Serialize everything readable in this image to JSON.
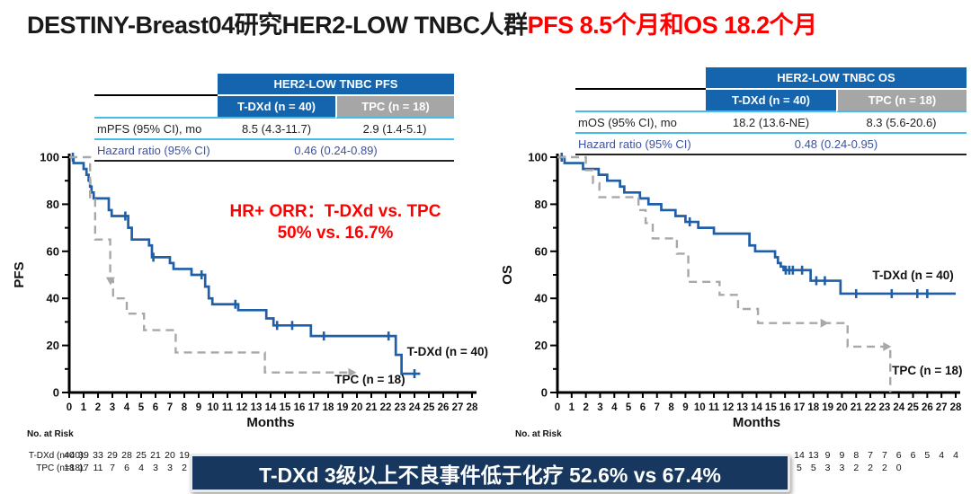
{
  "title": {
    "black": "DESTINY-Breast04研究HER2-LOW TNBC人群",
    "red": "PFS 8.5个月和OS 18.2个月"
  },
  "tables": {
    "pfs": {
      "group_header": "HER2-LOW TNBC PFS",
      "col_tdxd": "T-DXd (n = 40)",
      "col_tpc": "TPC (n = 18)",
      "median_label": "mPFS (95% CI), mo",
      "median_tdxd": "8.5 (4.3-11.7)",
      "median_tpc": "2.9 (1.4-5.1)",
      "hr_label": "Hazard ratio (95% CI)",
      "hr_value": "0.46 (0.24-0.89)"
    },
    "os": {
      "group_header": "HER2-LOW TNBC OS",
      "col_tdxd": "T-DXd (n = 40)",
      "col_tpc": "TPC (n = 18)",
      "median_label": "mOS (95% CI), mo",
      "median_tdxd": "18.2 (13.6-NE)",
      "median_tpc": "8.3 (5.6-20.6)",
      "hr_label": "Hazard ratio (95% CI)",
      "hr_value": "0.48 (0.24-0.95)"
    }
  },
  "annotation": {
    "line1": "HR+ ORR：T-DXd vs. TPC",
    "line2": "50% vs. 16.7%"
  },
  "banner": {
    "text": "T-DXd 3级以上不良事件低于化疗 52.6% vs 67.4%"
  },
  "colors": {
    "title_red": "#FF0000",
    "header_blue": "#1565AE",
    "header_gray": "#A6A6A6",
    "tdxd_blue": "#1F5FA8",
    "tpc_gray": "#A8A8A8",
    "cyan_rule": "#45BDEB",
    "hazard_blue": "#3D52A1",
    "banner_bg": "#17375E",
    "banner_text": "#FFFFFF"
  },
  "chart_data": [
    {
      "id": "pfs",
      "type": "line",
      "subtype": "kaplan-meier",
      "title": "HER2-LOW TNBC PFS",
      "xlabel": "Months",
      "ylabel": "PFS",
      "xlim": [
        0,
        28
      ],
      "ylim": [
        0,
        100
      ],
      "xtick_step": 1,
      "ytick_minor_step": 10,
      "ytick_label_step": 20,
      "grid": false,
      "risk_header": "No. at Risk",
      "risk_rows": [
        {
          "label": "T-DXd (n=40):",
          "start": 0,
          "values": [
            40,
            39,
            33,
            29,
            28,
            25,
            21,
            20,
            19
          ]
        },
        {
          "label": "TPC (n=18):",
          "start": 0,
          "values": [
            18,
            17,
            11,
            7,
            6,
            4,
            3,
            3,
            2
          ]
        }
      ],
      "series": [
        {
          "id": "tdxd",
          "name": "T-DXd (n = 40)",
          "color": "#1F5FA8",
          "dash": null,
          "width": 2.7,
          "points": [
            [
              0,
              100
            ],
            [
              0.3,
              97.5
            ],
            [
              1.0,
              95
            ],
            [
              1.2,
              92.5
            ],
            [
              1.35,
              90
            ],
            [
              1.45,
              87.5
            ],
            [
              1.55,
              85
            ],
            [
              1.7,
              82.5
            ],
            [
              2.75,
              77.5
            ],
            [
              2.95,
              75
            ],
            [
              4.1,
              70
            ],
            [
              4.35,
              65
            ],
            [
              5.55,
              62.5
            ],
            [
              5.75,
              57.5
            ],
            [
              7.0,
              55
            ],
            [
              7.25,
              52.5
            ],
            [
              8.5,
              50
            ],
            [
              9.45,
              45
            ],
            [
              9.7,
              40
            ],
            [
              9.95,
              37.5
            ],
            [
              11.75,
              35
            ],
            [
              13.7,
              31.5
            ],
            [
              14.2,
              28.5
            ],
            [
              16.8,
              24
            ],
            [
              22.7,
              16
            ],
            [
              23.1,
              8
            ]
          ],
          "end": 24.4,
          "censors": [
            [
              0.25,
              100
            ],
            [
              3.9,
              75
            ],
            [
              5.85,
              57.5
            ],
            [
              9.2,
              50
            ],
            [
              11.55,
              37.5
            ],
            [
              14.45,
              28.5
            ],
            [
              15.5,
              28.5
            ],
            [
              17.7,
              24
            ],
            [
              22.2,
              24
            ],
            [
              24.0,
              8
            ]
          ],
          "arrows": [],
          "label_x": 26.3,
          "label_y": 15.6
        },
        {
          "id": "tpc",
          "name": "TPC (n = 18)",
          "color": "#A8A8A8",
          "dash": "9,6",
          "width": 2.4,
          "points": [
            [
              0,
              100
            ],
            [
              1.45,
              83
            ],
            [
              1.8,
              65
            ],
            [
              2.85,
              47.5
            ],
            [
              3.05,
              40
            ],
            [
              4.0,
              33.5
            ],
            [
              5.2,
              26.5
            ],
            [
              7.4,
              17
            ],
            [
              13.6,
              8.5
            ]
          ],
          "end": 19.4,
          "censors": [],
          "arrows": [
            {
              "x": 2.87,
              "y": 49,
              "dir": "down"
            },
            {
              "x": 19.4,
              "y": 8.5,
              "dir": "right"
            }
          ],
          "label_x": 20.9,
          "label_y": 3.8
        }
      ]
    },
    {
      "id": "os",
      "type": "line",
      "subtype": "kaplan-meier",
      "title": "HER2-LOW TNBC OS",
      "xlabel": "Months",
      "ylabel": "OS",
      "xlim": [
        0,
        28
      ],
      "ylim": [
        0,
        100
      ],
      "xtick_step": 1,
      "ytick_minor_step": 10,
      "ytick_label_step": 20,
      "grid": false,
      "risk_header": "No. at Risk",
      "risk_rows": [
        {
          "label": "",
          "start": 17,
          "values": [
            14,
            13,
            9,
            9,
            8,
            7,
            7,
            6,
            6,
            5,
            4,
            4
          ]
        },
        {
          "label": "",
          "start": 17,
          "values": [
            5,
            5,
            3,
            3,
            2,
            2,
            2,
            0
          ]
        }
      ],
      "series": [
        {
          "id": "tdxd",
          "name": "T-DXd (n = 40)",
          "color": "#1F5FA8",
          "dash": null,
          "width": 2.7,
          "points": [
            [
              0,
              100
            ],
            [
              0.5,
              97.5
            ],
            [
              1.8,
              95
            ],
            [
              2.9,
              92.5
            ],
            [
              3.5,
              90
            ],
            [
              4.4,
              87.5
            ],
            [
              4.7,
              85
            ],
            [
              5.8,
              82.5
            ],
            [
              6.4,
              80
            ],
            [
              7.3,
              77.5
            ],
            [
              8.3,
              75
            ],
            [
              9.0,
              72.5
            ],
            [
              9.9,
              70
            ],
            [
              11.0,
              67.5
            ],
            [
              13.5,
              62.5
            ],
            [
              13.9,
              60
            ],
            [
              15.3,
              57.5
            ],
            [
              15.5,
              55
            ],
            [
              15.7,
              53.5
            ],
            [
              15.9,
              52
            ],
            [
              17.8,
              47.5
            ],
            [
              19.9,
              42
            ]
          ],
          "end": 28,
          "censors": [
            [
              0.3,
              100
            ],
            [
              9.3,
              72.5
            ],
            [
              16.05,
              52
            ],
            [
              16.3,
              52
            ],
            [
              16.55,
              52
            ],
            [
              17.2,
              52
            ],
            [
              18.2,
              47.5
            ],
            [
              18.8,
              47.5
            ],
            [
              21.0,
              42
            ],
            [
              23.5,
              42
            ],
            [
              25.3,
              42
            ],
            [
              26.0,
              42
            ]
          ],
          "arrows": [],
          "label_x": 25.0,
          "label_y": 48.1
        },
        {
          "id": "tpc",
          "name": "TPC (n = 18)",
          "color": "#A8A8A8",
          "dash": "9,6",
          "width": 2.4,
          "points": [
            [
              0,
              100
            ],
            [
              2.0,
              94.5
            ],
            [
              2.5,
              89
            ],
            [
              2.95,
              83
            ],
            [
              5.7,
              77.5
            ],
            [
              6.2,
              72
            ],
            [
              6.7,
              65.5
            ],
            [
              8.4,
              59
            ],
            [
              9.2,
              47
            ],
            [
              11.4,
              41.5
            ],
            [
              12.7,
              35.5
            ],
            [
              14.1,
              29.5
            ],
            [
              20.4,
              19.5
            ],
            [
              23.4,
              0
            ]
          ],
          "end": 23.4,
          "censors": [],
          "arrows": [
            {
              "x": 18.5,
              "y": 29.5,
              "dir": "right"
            },
            {
              "x": 22.9,
              "y": 19.5,
              "dir": "right"
            }
          ],
          "label_x": 26.0,
          "label_y": 7.6
        }
      ]
    }
  ]
}
